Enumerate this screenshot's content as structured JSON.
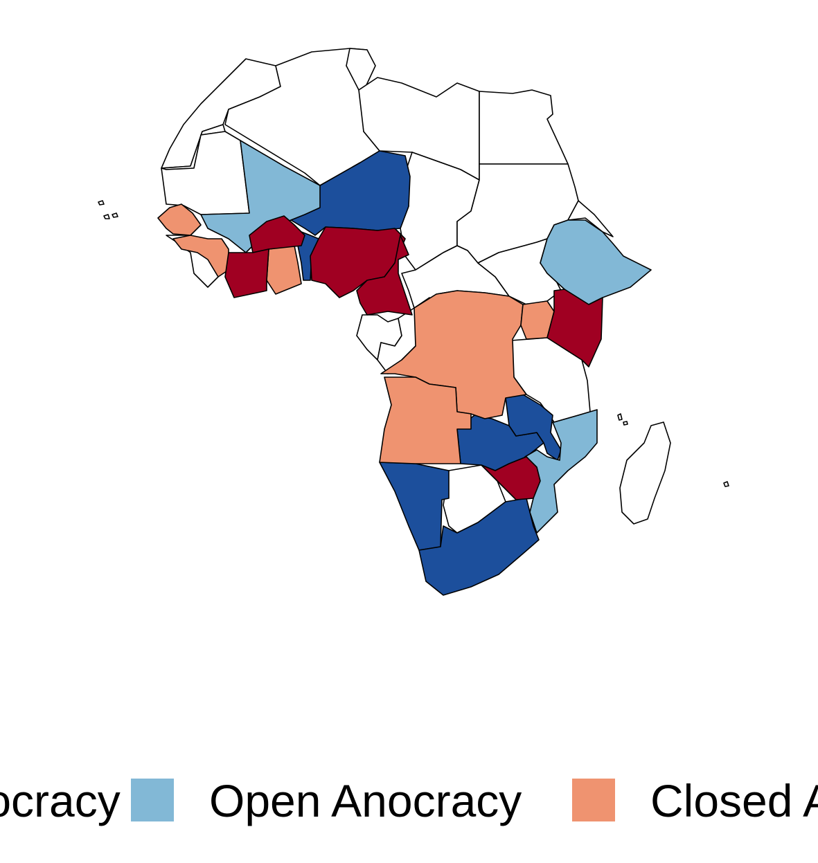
{
  "map": {
    "colors": {
      "democracy": "#1c4f9c",
      "open_anocracy": "#82b8d6",
      "closed_anocracy": "#ef9370",
      "autocracy": "#a00022",
      "no_data": "#ffffff",
      "border": "#000000"
    }
  },
  "legend": {
    "items": [
      {
        "label": "Democracy",
        "color": "#1c4f9c"
      },
      {
        "label": "Open Anocracy",
        "color": "#82b8d6"
      },
      {
        "label": "Closed Anocracy",
        "color": "#ef9370"
      }
    ]
  }
}
